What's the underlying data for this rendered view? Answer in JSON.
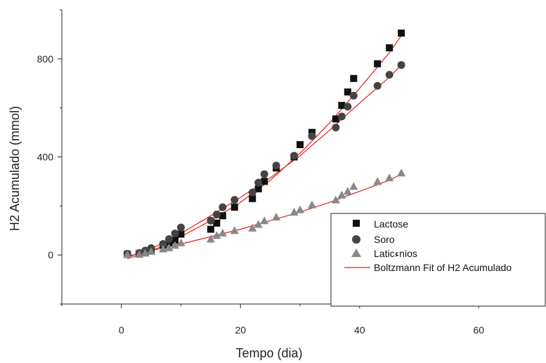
{
  "chart_data": {
    "type": "scatter",
    "xlabel": "Tempo (dia)",
    "ylabel": "H2 Acumulado (mmol)",
    "xlim": [
      -10,
      70
    ],
    "ylim": [
      -200,
      1000
    ],
    "x_ticks": [
      0,
      20,
      40,
      60
    ],
    "y_ticks": [
      0,
      400,
      800
    ],
    "x_tick_labels": [
      "0",
      "20",
      "40",
      "60"
    ],
    "y_tick_labels": [
      "0",
      "400",
      "800"
    ],
    "grid": false,
    "legend_position": "bottom-right",
    "series": [
      {
        "name": "Lactose",
        "marker": "square",
        "color": "#111111",
        "x": [
          1,
          3,
          4,
          5,
          7,
          8,
          9,
          10,
          15,
          16,
          17,
          19,
          22,
          23,
          24,
          26,
          29,
          30,
          32,
          36,
          37,
          38,
          39,
          43,
          45,
          47
        ],
        "y": [
          3,
          5,
          10,
          20,
          40,
          50,
          60,
          85,
          105,
          130,
          160,
          195,
          230,
          270,
          300,
          355,
          400,
          450,
          500,
          555,
          610,
          665,
          720,
          780,
          845,
          905
        ]
      },
      {
        "name": "Soro",
        "marker": "circle",
        "color": "#444444",
        "x": [
          1,
          3,
          4,
          5,
          7,
          8,
          9,
          10,
          15,
          16,
          17,
          19,
          22,
          23,
          24,
          26,
          29,
          32,
          36,
          37,
          38,
          39,
          43,
          45,
          47
        ],
        "y": [
          5,
          8,
          18,
          28,
          45,
          65,
          88,
          112,
          140,
          165,
          195,
          225,
          255,
          295,
          330,
          365,
          405,
          485,
          520,
          565,
          605,
          650,
          690,
          735,
          775
        ]
      },
      {
        "name": "Laticءnios",
        "marker": "triangle",
        "color": "#888888",
        "x": [
          1,
          3,
          4,
          5,
          7,
          8,
          9,
          10,
          15,
          16,
          17,
          19,
          22,
          23,
          24,
          26,
          29,
          30,
          32,
          36,
          37,
          38,
          39,
          43,
          45,
          47
        ],
        "y": [
          2,
          3,
          8,
          15,
          25,
          30,
          40,
          50,
          65,
          80,
          90,
          100,
          110,
          125,
          140,
          155,
          175,
          185,
          205,
          225,
          245,
          260,
          280,
          300,
          315,
          335
        ]
      },
      {
        "name": "Boltzmann Fit of H2 Acumulado",
        "type": "line",
        "color": "#e02020",
        "fits": [
          {
            "x": [
              1,
              5,
              10,
              15,
              20,
              25,
              30,
              35,
              40,
              45,
              47
            ],
            "y": [
              -15,
              15,
              75,
              140,
              215,
              305,
              415,
              540,
              680,
              825,
              895
            ]
          },
          {
            "x": [
              1,
              5,
              10,
              15,
              20,
              25,
              30,
              35,
              40,
              45,
              47
            ],
            "y": [
              -10,
              25,
              88,
              160,
              235,
              315,
              405,
              510,
              620,
              725,
              775
            ]
          },
          {
            "x": [
              1,
              5,
              10,
              15,
              20,
              25,
              30,
              35,
              40,
              45,
              47
            ],
            "y": [
              -5,
              18,
              45,
              75,
              105,
              140,
              175,
              215,
              260,
              305,
              330
            ]
          }
        ]
      }
    ]
  }
}
